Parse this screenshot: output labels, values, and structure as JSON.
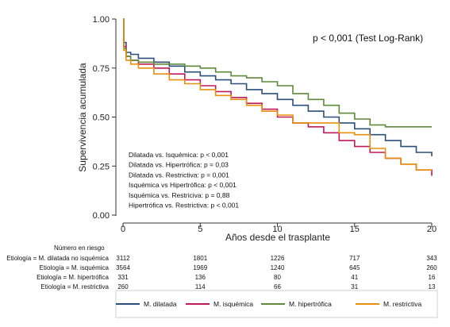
{
  "chart_data": {
    "type": "line",
    "title": "",
    "xlabel": "Años desde el trasplante",
    "ylabel": "Supervivencia acumulada",
    "xlim": [
      0,
      20
    ],
    "ylim": [
      0,
      1
    ],
    "xticks": [
      0,
      5,
      10,
      15,
      20
    ],
    "yticks": [
      0.0,
      0.25,
      0.5,
      0.75,
      1.0
    ],
    "ytick_labels": [
      "0.00",
      "0.25",
      "0.50",
      "0.75",
      "1.00"
    ],
    "grid": false,
    "legend_position": "bottom",
    "annotation_pvalue": "p < 0,001 (Test Log-Rank)",
    "comparisons": [
      "Dilatada vs. Isquémica: p < 0,001",
      "Dilatada vs. Hipertrófica: p = 0,03",
      "Dilatada vs. Restrictiva: p = 0,001",
      "Isquémica vs Hipertrófica: p < 0,001",
      "Isquémica vs. Restriciva: p = 0,88",
      "Hipertrófica vs. Restrictiva: p < 0,001"
    ],
    "series": [
      {
        "name": "M. dilatada",
        "color": "#2b4f7a",
        "x": [
          0,
          0.05,
          0.2,
          0.5,
          1,
          2,
          3,
          4,
          5,
          6,
          7,
          8,
          9,
          10,
          11,
          12,
          13,
          14,
          15,
          16,
          17,
          18,
          19,
          20
        ],
        "y": [
          1.0,
          0.88,
          0.83,
          0.82,
          0.8,
          0.78,
          0.76,
          0.73,
          0.71,
          0.69,
          0.67,
          0.64,
          0.62,
          0.59,
          0.56,
          0.53,
          0.5,
          0.47,
          0.44,
          0.41,
          0.38,
          0.35,
          0.32,
          0.3
        ]
      },
      {
        "name": "M. isquémica",
        "color": "#c0185c",
        "x": [
          0,
          0.05,
          0.2,
          0.5,
          1,
          2,
          3,
          4,
          5,
          6,
          7,
          8,
          9,
          10,
          11,
          12,
          13,
          14,
          15,
          16,
          17,
          18,
          19,
          20
        ],
        "y": [
          1.0,
          0.86,
          0.81,
          0.79,
          0.77,
          0.75,
          0.72,
          0.69,
          0.66,
          0.63,
          0.6,
          0.57,
          0.54,
          0.5,
          0.47,
          0.45,
          0.42,
          0.38,
          0.35,
          0.32,
          0.29,
          0.26,
          0.23,
          0.2
        ]
      },
      {
        "name": "M. hipertrófica",
        "color": "#5e8a3a",
        "x": [
          0,
          0.05,
          0.2,
          0.5,
          1,
          2,
          3,
          4,
          5,
          6,
          7,
          8,
          9,
          10,
          11,
          12,
          13,
          14,
          15,
          16,
          17,
          18,
          19,
          20
        ],
        "y": [
          1.0,
          0.85,
          0.81,
          0.79,
          0.78,
          0.77,
          0.77,
          0.76,
          0.75,
          0.73,
          0.71,
          0.7,
          0.68,
          0.66,
          0.62,
          0.59,
          0.56,
          0.52,
          0.49,
          0.46,
          0.45,
          0.45,
          0.45,
          0.45
        ]
      },
      {
        "name": "M. restrictiva",
        "color": "#e8900c",
        "x": [
          0,
          0.05,
          0.2,
          0.5,
          1,
          2,
          3,
          4,
          5,
          6,
          7,
          8,
          9,
          10,
          11,
          12,
          13,
          14,
          15,
          16,
          17,
          18,
          19,
          20
        ],
        "y": [
          1.0,
          0.84,
          0.79,
          0.77,
          0.75,
          0.72,
          0.69,
          0.67,
          0.64,
          0.61,
          0.59,
          0.56,
          0.53,
          0.51,
          0.47,
          0.47,
          0.47,
          0.42,
          0.41,
          0.34,
          0.29,
          0.26,
          0.23,
          0.23
        ]
      }
    ],
    "risk_table": {
      "title": "Número en riesgo",
      "times": [
        0,
        5,
        10,
        15,
        20
      ],
      "rows": [
        {
          "label": "Etiología = M. dilatada no isquémica",
          "values": [
            "3112",
            "1801",
            "1226",
            "717",
            "343"
          ]
        },
        {
          "label": "Etiología = M. isquémica",
          "values": [
            "3564",
            "1969",
            "1240",
            "645",
            "260"
          ]
        },
        {
          "label": "Etiología = M. hipertrófica",
          "values": [
            "331",
            "136",
            "80",
            "41",
            "16"
          ]
        },
        {
          "label": "Etiología = M. restrictiva",
          "values": [
            "260",
            "114",
            "66",
            "31",
            "13"
          ]
        }
      ]
    }
  }
}
